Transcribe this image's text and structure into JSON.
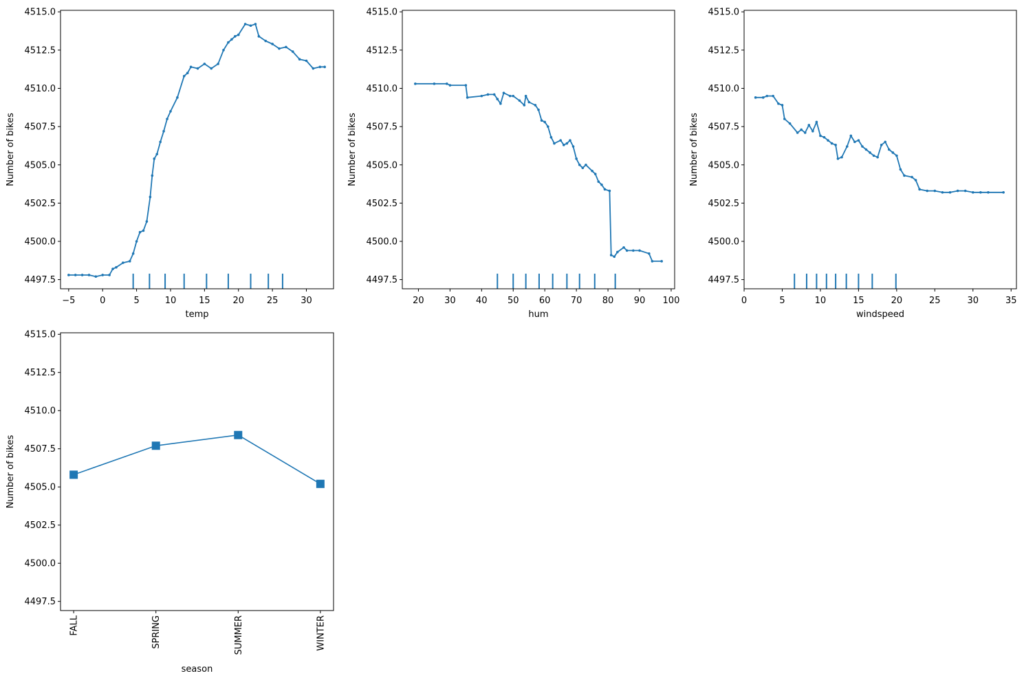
{
  "chart_data": [
    {
      "type": "line",
      "title": "",
      "xlabel": "temp",
      "ylabel": "Number of bikes",
      "xlim": [
        -6.2,
        34.0
      ],
      "ylim": [
        4496.9,
        4515.1
      ],
      "xticks": [
        -5,
        0,
        5,
        10,
        15,
        20,
        25,
        30
      ],
      "yticks": [
        4497.5,
        4500.0,
        4502.5,
        4505.0,
        4507.5,
        4510.0,
        4512.5,
        4515.0
      ],
      "grid": false,
      "color": "#1f77b4",
      "x": [
        -5.0,
        -4.0,
        -3.0,
        -2.0,
        -1.0,
        0.0,
        1.0,
        1.5,
        2.0,
        3.0,
        4.0,
        4.5,
        5.0,
        5.5,
        6.0,
        6.5,
        7.0,
        7.3,
        7.6,
        8.0,
        8.5,
        9.0,
        9.5,
        10.0,
        11.0,
        12.0,
        12.5,
        13.0,
        14.0,
        15.0,
        16.0,
        17.0,
        17.8,
        18.5,
        19.0,
        19.5,
        20.0,
        21.0,
        21.8,
        22.5,
        23.0,
        24.0,
        25.0,
        26.0,
        27.0,
        28.0,
        29.0,
        30.0,
        31.0,
        32.0,
        32.7
      ],
      "y": [
        4497.8,
        4497.8,
        4497.8,
        4497.8,
        4497.7,
        4497.8,
        4497.8,
        4498.2,
        4498.3,
        4498.6,
        4498.7,
        4499.2,
        4500.0,
        4500.6,
        4500.7,
        4501.3,
        4502.9,
        4504.3,
        4505.4,
        4505.7,
        4506.5,
        4507.2,
        4508.0,
        4508.5,
        4509.4,
        4510.8,
        4511.0,
        4511.4,
        4511.3,
        4511.6,
        4511.3,
        4511.6,
        4512.5,
        4513.0,
        4513.2,
        4513.4,
        4513.5,
        4514.2,
        4514.1,
        4514.2,
        4513.4,
        4513.1,
        4512.9,
        4512.6,
        4512.7,
        4512.4,
        4511.9,
        4511.8,
        4511.3,
        4511.4,
        4511.4
      ],
      "deciles": [
        4.5,
        6.9,
        9.2,
        12.0,
        15.3,
        18.5,
        21.8,
        24.4,
        26.5
      ]
    },
    {
      "type": "line",
      "title": "",
      "xlabel": "hum",
      "ylabel": "Number of bikes",
      "xlim": [
        14.9,
        101.1
      ],
      "ylim": [
        4496.9,
        4515.1
      ],
      "xticks": [
        20,
        30,
        40,
        50,
        60,
        70,
        80,
        90,
        100
      ],
      "yticks": [
        4497.5,
        4500.0,
        4502.5,
        4505.0,
        4507.5,
        4510.0,
        4512.5,
        4515.0
      ],
      "grid": false,
      "color": "#1f77b4",
      "x": [
        19.0,
        25.0,
        29.0,
        30.0,
        35.0,
        35.5,
        40.0,
        42.0,
        44.0,
        45.0,
        46.0,
        47.0,
        49.0,
        50.0,
        52.0,
        53.5,
        54.0,
        55.0,
        57.0,
        58.0,
        59.0,
        60.0,
        61.0,
        62.0,
        63.0,
        65.0,
        66.0,
        67.0,
        68.0,
        69.0,
        70.0,
        71.0,
        72.0,
        73.0,
        75.0,
        76.0,
        77.0,
        78.0,
        79.0,
        80.5,
        81.0,
        82.0,
        83.0,
        85.0,
        86.0,
        88.0,
        90.0,
        93.0,
        94.0,
        97.0
      ],
      "y": [
        4510.3,
        4510.3,
        4510.3,
        4510.2,
        4510.2,
        4509.4,
        4509.5,
        4509.6,
        4509.6,
        4509.3,
        4509.0,
        4509.7,
        4509.5,
        4509.5,
        4509.2,
        4508.9,
        4509.5,
        4509.1,
        4508.9,
        4508.6,
        4507.9,
        4507.8,
        4507.5,
        4506.8,
        4506.4,
        4506.6,
        4506.3,
        4506.4,
        4506.6,
        4506.2,
        4505.4,
        4505.0,
        4504.8,
        4505.0,
        4504.6,
        4504.4,
        4503.9,
        4503.7,
        4503.4,
        4503.3,
        4499.1,
        4499.0,
        4499.3,
        4499.6,
        4499.4,
        4499.4,
        4499.4,
        4499.2,
        4498.7,
        4498.7
      ],
      "deciles": [
        45.0,
        50.0,
        54.0,
        58.2,
        62.5,
        67.0,
        71.0,
        75.8,
        82.3
      ]
    },
    {
      "type": "line",
      "title": "",
      "xlabel": "windspeed",
      "ylabel": "Number of bikes",
      "xlim": [
        0.0,
        35.7
      ],
      "ylim": [
        4496.9,
        4515.1
      ],
      "xticks": [
        0,
        5,
        10,
        15,
        20,
        25,
        30,
        35
      ],
      "yticks": [
        4497.5,
        4500.0,
        4502.5,
        4505.0,
        4507.5,
        4510.0,
        4512.5,
        4515.0
      ],
      "grid": false,
      "color": "#1f77b4",
      "x": [
        1.5,
        2.5,
        3.0,
        3.8,
        4.5,
        5.0,
        5.3,
        6.0,
        7.0,
        7.5,
        8.0,
        8.5,
        9.0,
        9.5,
        10.0,
        10.5,
        11.0,
        11.5,
        12.0,
        12.3,
        12.8,
        13.5,
        14.0,
        14.5,
        15.0,
        15.5,
        16.0,
        16.5,
        17.0,
        17.5,
        18.0,
        18.5,
        19.0,
        19.5,
        20.0,
        20.5,
        21.0,
        22.0,
        22.5,
        23.0,
        24.0,
        25.0,
        26.0,
        27.0,
        28.0,
        29.0,
        30.0,
        31.0,
        32.0,
        34.0
      ],
      "y": [
        4509.4,
        4509.4,
        4509.5,
        4509.5,
        4509.0,
        4508.9,
        4508.0,
        4507.7,
        4507.1,
        4507.3,
        4507.1,
        4507.6,
        4507.2,
        4507.8,
        4506.9,
        4506.8,
        4506.6,
        4506.4,
        4506.3,
        4505.4,
        4505.5,
        4506.2,
        4506.9,
        4506.5,
        4506.6,
        4506.2,
        4506.0,
        4505.8,
        4505.6,
        4505.5,
        4506.3,
        4506.5,
        4506.0,
        4505.8,
        4505.6,
        4504.7,
        4504.3,
        4504.2,
        4504.0,
        4503.4,
        4503.3,
        4503.3,
        4503.2,
        4503.2,
        4503.3,
        4503.3,
        4503.2,
        4503.2,
        4503.2,
        4503.2
      ],
      "deciles": [
        6.6,
        8.2,
        9.5,
        10.8,
        12.0,
        13.4,
        15.0,
        16.8,
        19.9
      ]
    },
    {
      "type": "line",
      "title": "",
      "xlabel": "season",
      "ylabel": "Number of bikes",
      "ylim": [
        4496.9,
        4515.1
      ],
      "yticks": [
        4497.5,
        4500.0,
        4502.5,
        4505.0,
        4507.5,
        4510.0,
        4512.5,
        4515.0
      ],
      "grid": false,
      "color": "#1f77b4",
      "marker": "square",
      "categories": [
        "FALL",
        "SPRING",
        "SUMMER",
        "WINTER"
      ],
      "values": [
        4505.8,
        4507.7,
        4508.4,
        4505.2
      ]
    }
  ]
}
